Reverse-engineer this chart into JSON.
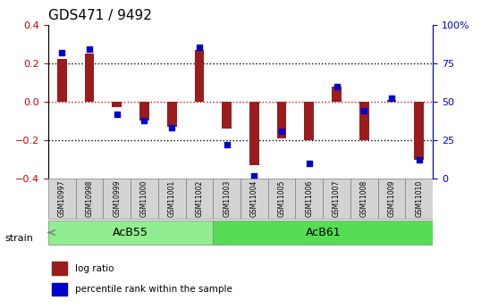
{
  "title": "GDS471 / 9492",
  "samples": [
    "GSM10997",
    "GSM10998",
    "GSM10999",
    "GSM11000",
    "GSM11001",
    "GSM11002",
    "GSM11003",
    "GSM11004",
    "GSM11005",
    "GSM11006",
    "GSM11007",
    "GSM11008",
    "GSM11009",
    "GSM11010"
  ],
  "log_ratio": [
    0.22,
    0.25,
    -0.03,
    -0.1,
    -0.13,
    0.27,
    -0.14,
    -0.33,
    -0.19,
    -0.2,
    0.08,
    -0.2,
    0.01,
    -0.3
  ],
  "percentile_rank": [
    82,
    84,
    42,
    38,
    33,
    85,
    22,
    2,
    31,
    10,
    60,
    44,
    52,
    12
  ],
  "groups": [
    {
      "name": "AcB55",
      "start": 0,
      "end": 5,
      "color": "#90ee90"
    },
    {
      "name": "AcB61",
      "start": 6,
      "end": 13,
      "color": "#55dd55"
    }
  ],
  "bar_color": "#9b1c1c",
  "dot_color": "#0000cc",
  "ylim": [
    -0.4,
    0.4
  ],
  "y2lim": [
    0,
    100
  ],
  "yticks": [
    -0.4,
    -0.2,
    0.0,
    0.2,
    0.4
  ],
  "y2ticks": [
    0,
    25,
    50,
    75,
    100
  ],
  "hlines": [
    0.2,
    0.0,
    -0.2
  ],
  "hline_colors": [
    "black",
    "red",
    "black"
  ],
  "hline_styles": [
    "dotted",
    "dotted",
    "dotted"
  ],
  "bar_width": 0.35,
  "dot_size": 25,
  "xlabel_fontsize": 7,
  "ylabel_color_left": "#cc0000",
  "ylabel_color_right": "#0000cc",
  "title_fontsize": 11,
  "strain_label": "strain",
  "legend_items": [
    {
      "label": "log ratio",
      "color": "#9b1c1c",
      "marker": "s"
    },
    {
      "label": "percentile rank within the sample",
      "color": "#0000cc",
      "marker": "s"
    }
  ]
}
